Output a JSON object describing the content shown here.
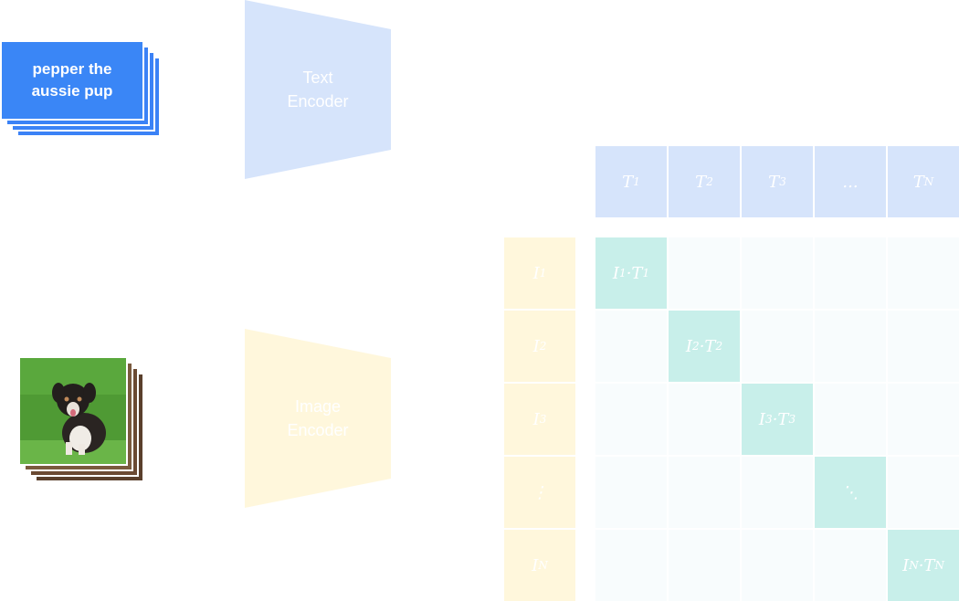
{
  "text_input": {
    "line1": "pepper the",
    "line2": "aussie pup"
  },
  "encoders": {
    "text": {
      "line1": "Text",
      "line2": "Encoder"
    },
    "image": {
      "line1": "Image",
      "line2": "Encoder"
    }
  },
  "text_embeddings": [
    "T",
    "T",
    "T",
    "...",
    "T"
  ],
  "text_subs": [
    "1",
    "2",
    "3",
    "",
    "N"
  ],
  "image_embeddings": [
    "I",
    "I",
    "I",
    "⋮",
    "I"
  ],
  "image_subs": [
    "1",
    "2",
    "3",
    "",
    "N"
  ],
  "matrix": {
    "diagonal": [
      {
        "a": "I",
        "as": "1",
        "b": "T",
        "bs": "1"
      },
      {
        "a": "I",
        "as": "2",
        "b": "T",
        "bs": "2"
      },
      {
        "a": "I",
        "as": "3",
        "b": "T",
        "bs": "3"
      },
      {
        "ellipsis": "⋱"
      },
      {
        "a": "I",
        "as": "N",
        "b": "T",
        "bs": "N"
      }
    ]
  },
  "colors": {
    "text_card": "#3a86f6",
    "text_encoder": "#d6e4fb",
    "image_encoder": "#fff7dc",
    "diagonal": "#c8efea"
  }
}
